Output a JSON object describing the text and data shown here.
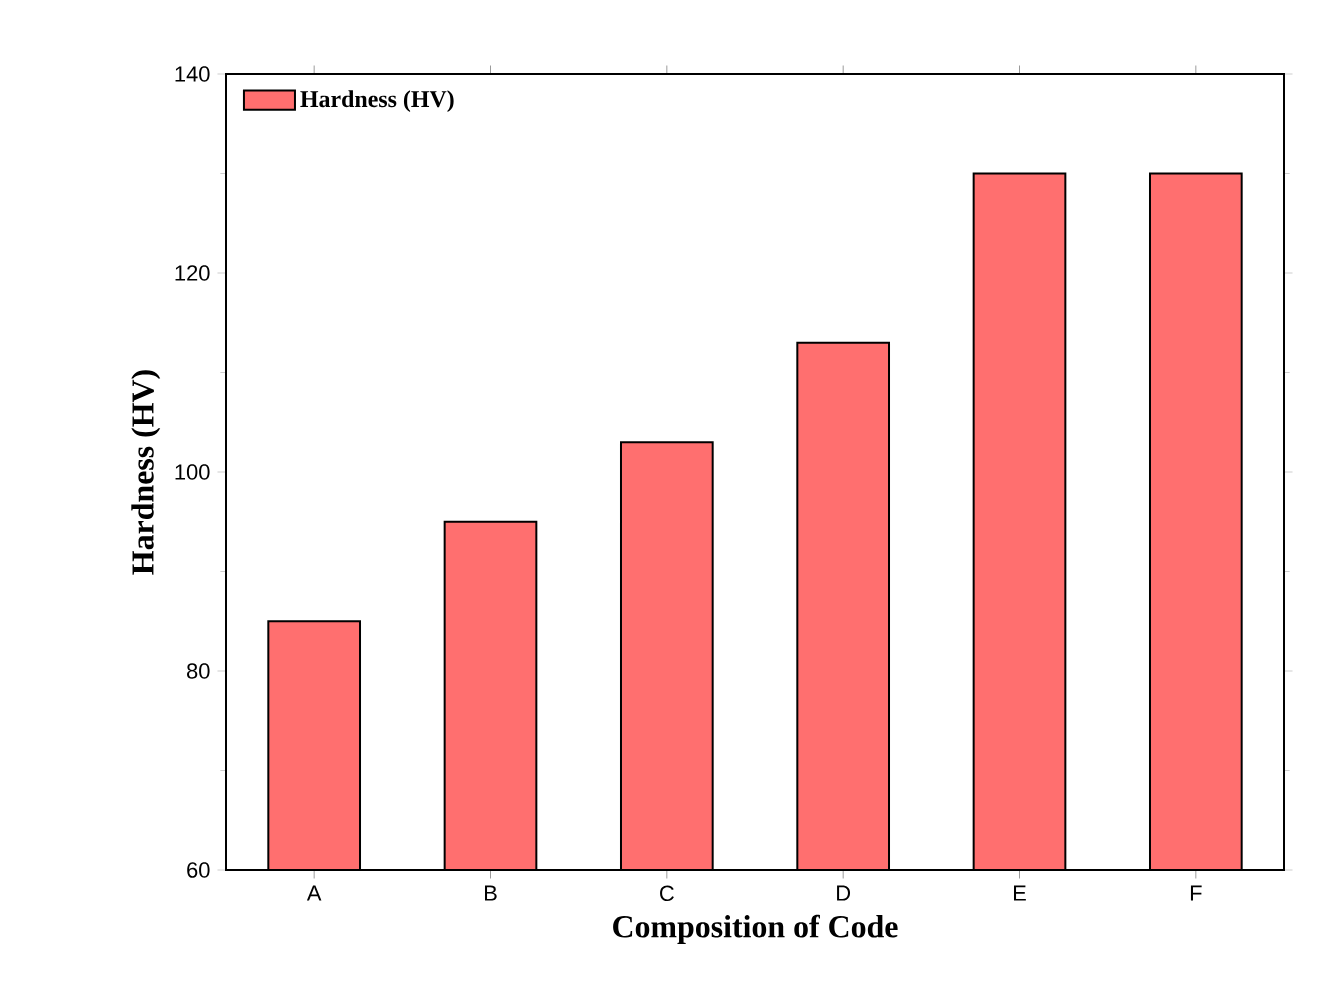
{
  "chart_data": {
    "type": "bar",
    "xlabel": "Composition of Code",
    "ylabel": "Hardness (HV)",
    "categories": [
      "A",
      "B",
      "C",
      "D",
      "E",
      "F"
    ],
    "series": [
      {
        "name": "Hardness (HV)",
        "color": "#ff6f6f",
        "values": [
          85,
          95,
          103,
          113,
          130,
          130
        ]
      }
    ],
    "ylim": [
      60,
      140
    ],
    "yticks": [
      60,
      80,
      100,
      120,
      140
    ],
    "grid": false,
    "legend": "top left"
  }
}
